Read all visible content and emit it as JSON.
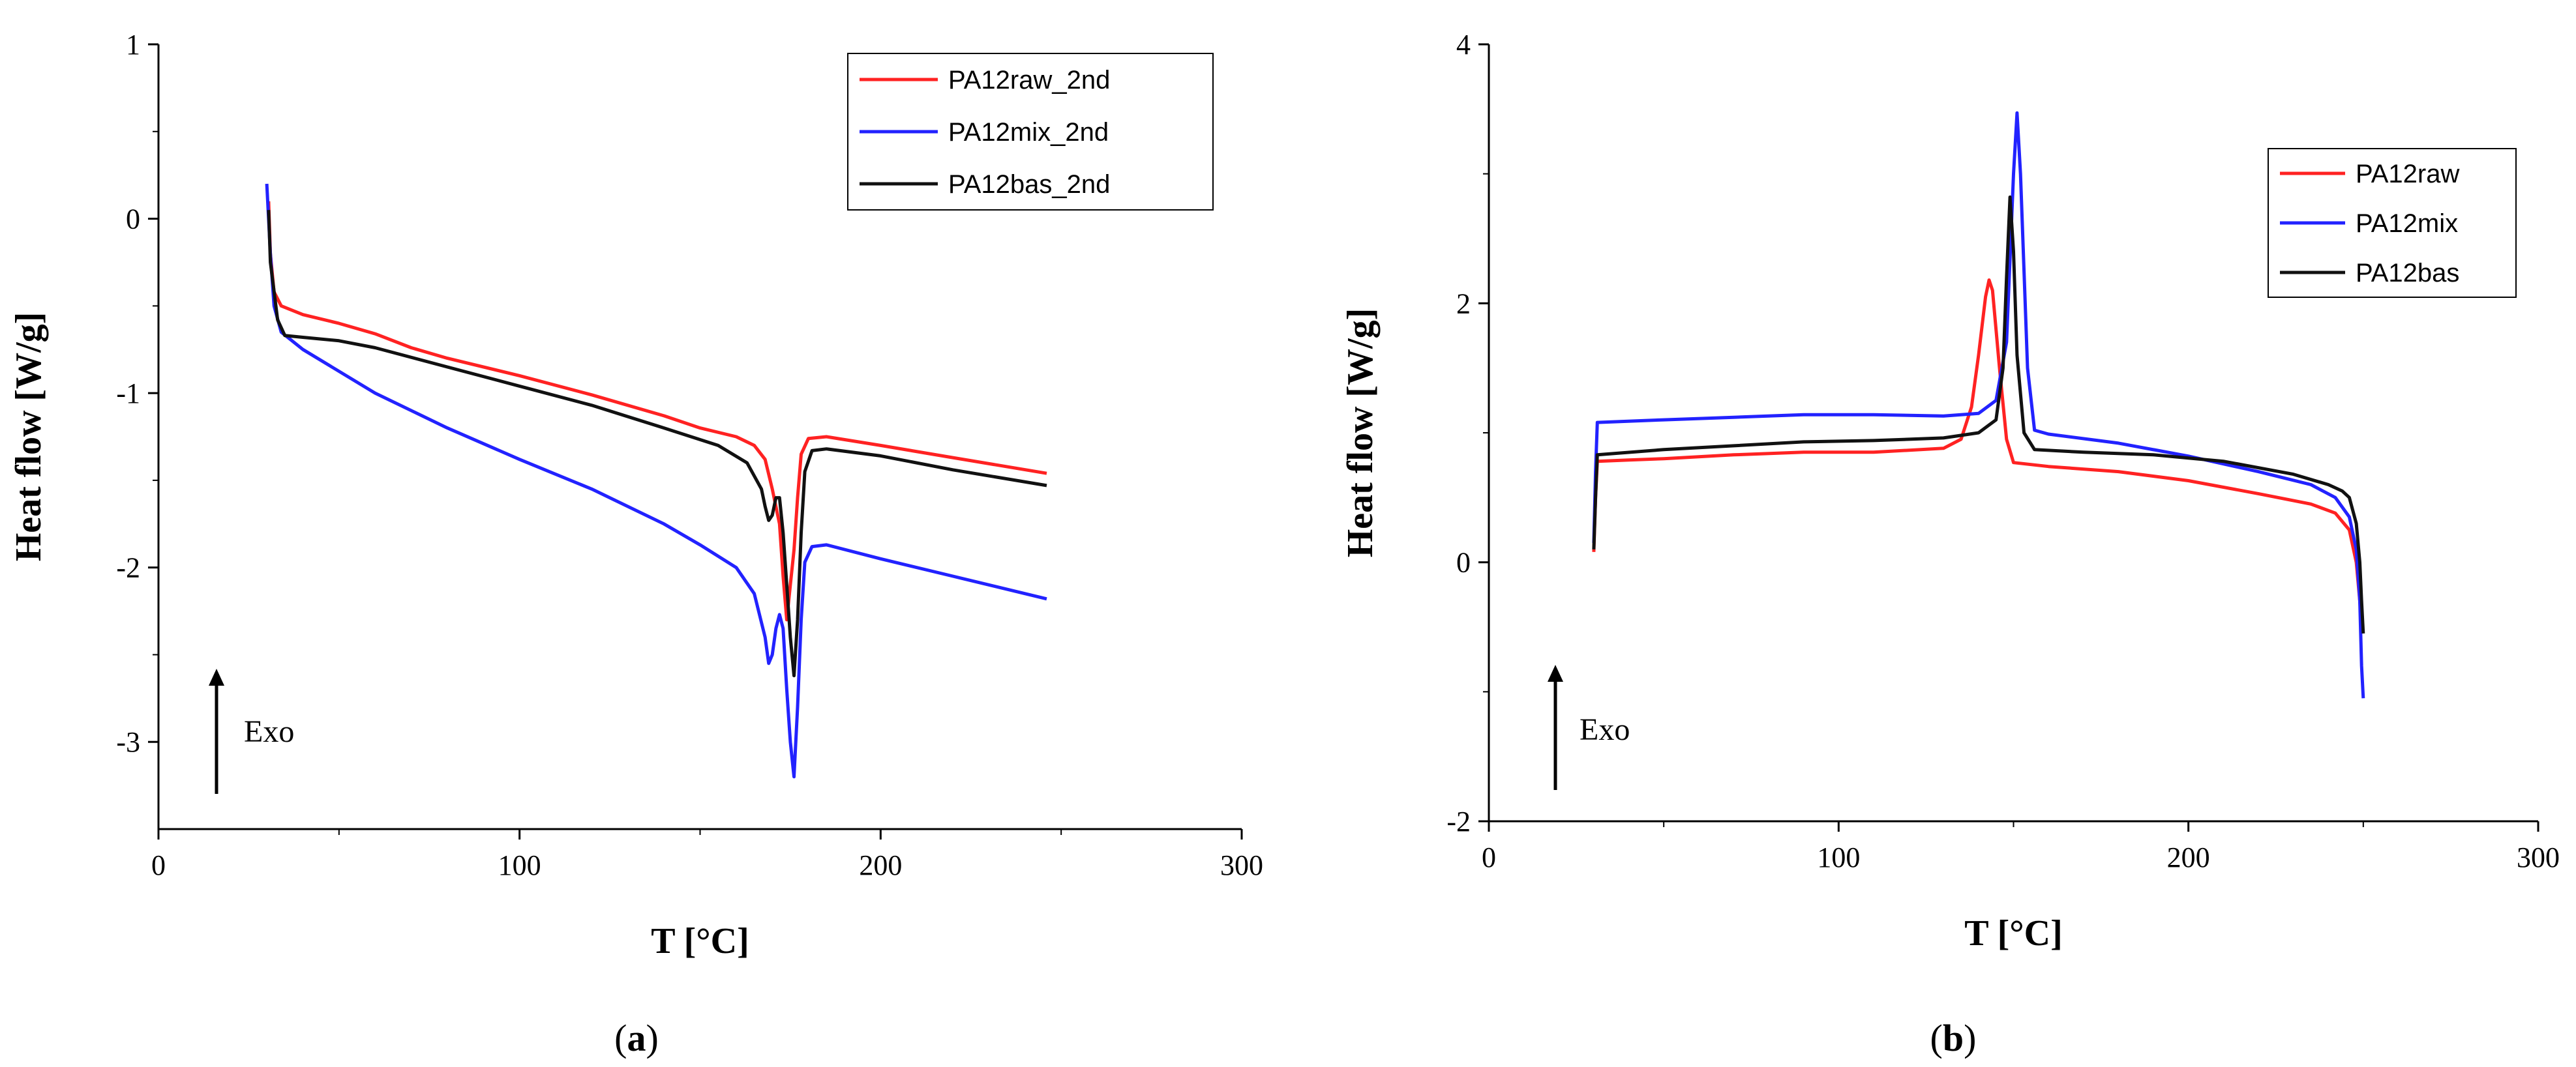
{
  "colors": {
    "raw": "#ff2222",
    "mix": "#2222ff",
    "bas": "#111111"
  },
  "chart_data": [
    {
      "type": "line",
      "panel": "a",
      "xlabel": "T [°C]",
      "ylabel": "Heat flow [W/g]",
      "xlim": [
        0,
        300
      ],
      "ylim": [
        -3.5,
        1
      ],
      "xticks": [
        0,
        100,
        200,
        300
      ],
      "yticks": [
        -3,
        -2,
        -1,
        0,
        1
      ],
      "legend_position": "top-right",
      "annotation": "Exo",
      "series": [
        {
          "name": "PA12raw_2nd",
          "color_key": "raw",
          "points": [
            [
              30.5,
              0.1
            ],
            [
              31,
              -0.2
            ],
            [
              32,
              -0.42
            ],
            [
              34,
              -0.5
            ],
            [
              40,
              -0.55
            ],
            [
              50,
              -0.6
            ],
            [
              60,
              -0.66
            ],
            [
              70,
              -0.74
            ],
            [
              80,
              -0.8
            ],
            [
              100,
              -0.9
            ],
            [
              120,
              -1.01
            ],
            [
              140,
              -1.13
            ],
            [
              150,
              -1.2
            ],
            [
              160,
              -1.25
            ],
            [
              165,
              -1.3
            ],
            [
              168,
              -1.38
            ],
            [
              170,
              -1.55
            ],
            [
              172,
              -1.75
            ],
            [
              173,
              -2.05
            ],
            [
              174,
              -2.3
            ],
            [
              175,
              -2.1
            ],
            [
              176,
              -1.9
            ],
            [
              177,
              -1.6
            ],
            [
              178,
              -1.35
            ],
            [
              180,
              -1.26
            ],
            [
              185,
              -1.25
            ],
            [
              200,
              -1.3
            ],
            [
              220,
              -1.37
            ],
            [
              246,
              -1.46
            ]
          ]
        },
        {
          "name": "PA12mix_2nd",
          "color_key": "mix",
          "points": [
            [
              30,
              0.2
            ],
            [
              31,
              -0.2
            ],
            [
              32,
              -0.5
            ],
            [
              34,
              -0.65
            ],
            [
              40,
              -0.75
            ],
            [
              60,
              -1.0
            ],
            [
              80,
              -1.2
            ],
            [
              100,
              -1.38
            ],
            [
              120,
              -1.55
            ],
            [
              140,
              -1.75
            ],
            [
              150,
              -1.87
            ],
            [
              160,
              -2.0
            ],
            [
              165,
              -2.15
            ],
            [
              168,
              -2.4
            ],
            [
              169,
              -2.55
            ],
            [
              170,
              -2.5
            ],
            [
              171,
              -2.35
            ],
            [
              172,
              -2.27
            ],
            [
              173,
              -2.35
            ],
            [
              174,
              -2.7
            ],
            [
              175,
              -3.0
            ],
            [
              176,
              -3.2
            ],
            [
              177,
              -2.8
            ],
            [
              178,
              -2.3
            ],
            [
              179,
              -1.97
            ],
            [
              181,
              -1.88
            ],
            [
              185,
              -1.87
            ],
            [
              200,
              -1.95
            ],
            [
              220,
              -2.05
            ],
            [
              246,
              -2.18
            ]
          ]
        },
        {
          "name": "PA12bas_2nd",
          "color_key": "bas",
          "points": [
            [
              30.5,
              0.05
            ],
            [
              31,
              -0.25
            ],
            [
              33,
              -0.58
            ],
            [
              35,
              -0.67
            ],
            [
              40,
              -0.68
            ],
            [
              50,
              -0.7
            ],
            [
              60,
              -0.74
            ],
            [
              80,
              -0.85
            ],
            [
              100,
              -0.96
            ],
            [
              120,
              -1.07
            ],
            [
              140,
              -1.2
            ],
            [
              155,
              -1.3
            ],
            [
              163,
              -1.4
            ],
            [
              167,
              -1.55
            ],
            [
              168,
              -1.65
            ],
            [
              169,
              -1.73
            ],
            [
              170,
              -1.7
            ],
            [
              171,
              -1.6
            ],
            [
              172,
              -1.6
            ],
            [
              173,
              -1.8
            ],
            [
              174,
              -2.1
            ],
            [
              175,
              -2.4
            ],
            [
              176,
              -2.62
            ],
            [
              177,
              -2.3
            ],
            [
              178,
              -1.8
            ],
            [
              179,
              -1.45
            ],
            [
              181,
              -1.33
            ],
            [
              185,
              -1.32
            ],
            [
              200,
              -1.36
            ],
            [
              220,
              -1.44
            ],
            [
              246,
              -1.53
            ]
          ]
        }
      ]
    },
    {
      "type": "line",
      "panel": "b",
      "xlabel": "T [°C]",
      "ylabel": "Heat flow [W/g]",
      "xlim": [
        0,
        300
      ],
      "ylim": [
        -2,
        4
      ],
      "xticks": [
        0,
        100,
        200,
        300
      ],
      "yticks": [
        -2,
        0,
        2,
        4
      ],
      "legend_position": "top-right",
      "annotation": "Exo",
      "series": [
        {
          "name": "PA12raw",
          "color_key": "raw",
          "points": [
            [
              30,
              0.08
            ],
            [
              30.5,
              0.5
            ],
            [
              31,
              0.78
            ],
            [
              40,
              0.79
            ],
            [
              50,
              0.8
            ],
            [
              70,
              0.83
            ],
            [
              90,
              0.85
            ],
            [
              110,
              0.85
            ],
            [
              130,
              0.88
            ],
            [
              135,
              0.95
            ],
            [
              138,
              1.2
            ],
            [
              140,
              1.6
            ],
            [
              142,
              2.05
            ],
            [
              143,
              2.18
            ],
            [
              144,
              2.1
            ],
            [
              146,
              1.5
            ],
            [
              148,
              0.95
            ],
            [
              150,
              0.77
            ],
            [
              160,
              0.74
            ],
            [
              180,
              0.7
            ],
            [
              200,
              0.63
            ],
            [
              220,
              0.53
            ],
            [
              235,
              0.45
            ],
            [
              242,
              0.38
            ],
            [
              246,
              0.25
            ],
            [
              248,
              0.0
            ],
            [
              249,
              -0.3
            ],
            [
              249.5,
              -0.5
            ]
          ]
        },
        {
          "name": "PA12mix",
          "color_key": "mix",
          "points": [
            [
              30,
              0.15
            ],
            [
              30.5,
              0.7
            ],
            [
              31,
              1.08
            ],
            [
              50,
              1.1
            ],
            [
              70,
              1.12
            ],
            [
              90,
              1.14
            ],
            [
              110,
              1.14
            ],
            [
              130,
              1.13
            ],
            [
              140,
              1.15
            ],
            [
              145,
              1.25
            ],
            [
              148,
              1.7
            ],
            [
              150,
              3.0
            ],
            [
              151,
              3.47
            ],
            [
              152,
              3.0
            ],
            [
              154,
              1.5
            ],
            [
              156,
              1.02
            ],
            [
              160,
              0.99
            ],
            [
              180,
              0.92
            ],
            [
              200,
              0.82
            ],
            [
              220,
              0.7
            ],
            [
              235,
              0.6
            ],
            [
              242,
              0.5
            ],
            [
              246,
              0.35
            ],
            [
              248,
              0.1
            ],
            [
              249,
              -0.3
            ],
            [
              249.5,
              -0.8
            ],
            [
              250,
              -1.05
            ]
          ]
        },
        {
          "name": "PA12bas",
          "color_key": "bas",
          "points": [
            [
              30,
              0.1
            ],
            [
              30.5,
              0.5
            ],
            [
              31,
              0.83
            ],
            [
              50,
              0.87
            ],
            [
              70,
              0.9
            ],
            [
              90,
              0.93
            ],
            [
              110,
              0.94
            ],
            [
              130,
              0.96
            ],
            [
              140,
              1.0
            ],
            [
              145,
              1.1
            ],
            [
              147,
              1.5
            ],
            [
              148,
              2.2
            ],
            [
              149,
              2.82
            ],
            [
              150,
              2.4
            ],
            [
              151,
              1.6
            ],
            [
              153,
              1.0
            ],
            [
              156,
              0.87
            ],
            [
              170,
              0.85
            ],
            [
              190,
              0.83
            ],
            [
              210,
              0.78
            ],
            [
              230,
              0.68
            ],
            [
              240,
              0.6
            ],
            [
              244,
              0.55
            ],
            [
              246,
              0.5
            ],
            [
              248,
              0.3
            ],
            [
              249,
              0.0
            ],
            [
              249.5,
              -0.3
            ],
            [
              250,
              -0.55
            ]
          ]
        }
      ]
    }
  ],
  "panel_labels": [
    {
      "open": "(",
      "letter": "a",
      "close": ")"
    },
    {
      "open": "(",
      "letter": "b",
      "close": ")"
    }
  ]
}
